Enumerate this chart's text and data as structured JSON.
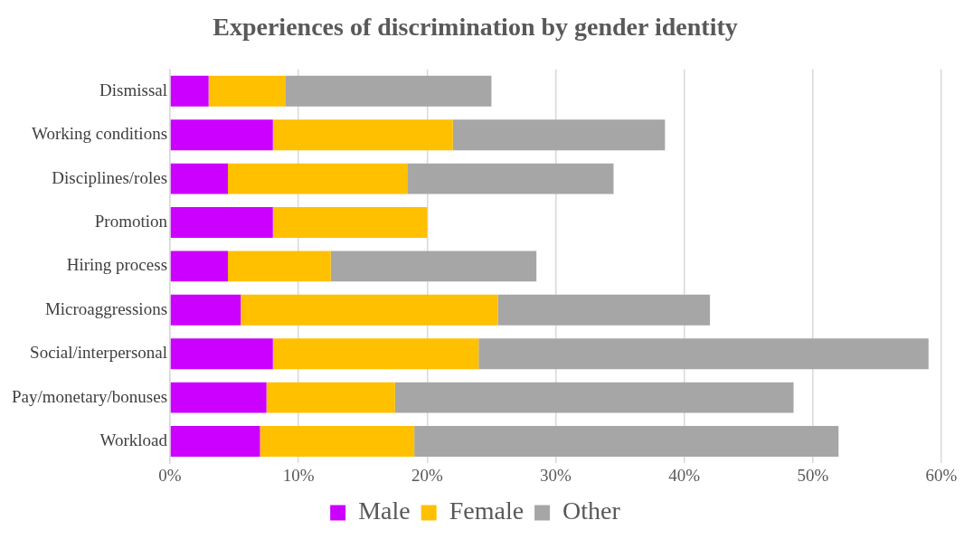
{
  "chart_data": {
    "type": "bar",
    "orientation": "horizontal",
    "stacked": true,
    "title": "Experiences of discrimination by gender identity",
    "categories": [
      "Dismissal",
      "Working conditions",
      "Disciplines/roles",
      "Promotion",
      "Hiring process",
      "Microaggressions",
      "Social/interpersonal",
      "Pay/monetary/bonuses",
      "Workload"
    ],
    "series": [
      {
        "name": "Male",
        "color": "#cc00ff",
        "values": [
          3,
          8,
          4.5,
          8,
          4.5,
          5.5,
          8,
          7.5,
          7
        ]
      },
      {
        "name": "Female",
        "color": "#ffc000",
        "values": [
          6,
          14,
          14,
          12,
          8,
          20,
          16,
          10,
          12
        ]
      },
      {
        "name": "Other",
        "color": "#a6a6a6",
        "values": [
          16,
          16.5,
          16,
          0,
          16,
          16.5,
          35,
          31,
          33
        ]
      }
    ],
    "xlim": [
      0,
      60
    ],
    "xticks": [
      {
        "value": 0,
        "label": "0%"
      },
      {
        "value": 10,
        "label": "10%"
      },
      {
        "value": 20,
        "label": "20%"
      },
      {
        "value": 30,
        "label": "30%"
      },
      {
        "value": 40,
        "label": "40%"
      },
      {
        "value": 50,
        "label": "50%"
      },
      {
        "value": 60,
        "label": "60%"
      }
    ],
    "grid": "x",
    "legend": "bottom"
  }
}
